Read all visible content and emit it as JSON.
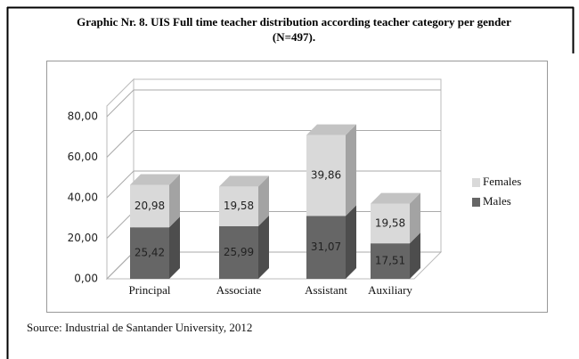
{
  "chart_data": {
    "type": "bar3d_stacked",
    "title": "Graphic  Nr. 8. UIS  Full time teacher distribution  according teacher category  per gender  (N=497).",
    "categories": [
      "Principal",
      "Associate",
      "Assistant",
      "Auxiliary"
    ],
    "series": [
      {
        "name": "Males",
        "color": "#666666",
        "values": [
          25.42,
          25.99,
          31.07,
          17.51
        ],
        "value_labels": [
          "25,42",
          "25,99",
          "31,07",
          "17,51"
        ]
      },
      {
        "name": "Females",
        "color": "#d9d9d9",
        "values": [
          20.98,
          19.58,
          39.86,
          19.58
        ],
        "value_labels": [
          "20,98",
          "19,58",
          "39,86",
          "19,58"
        ]
      }
    ],
    "ylim": [
      0,
      80
    ],
    "yticks": [
      {
        "value": 0,
        "label": "0,00"
      },
      {
        "value": 20,
        "label": "20,00"
      },
      {
        "value": 40,
        "label": "40,00"
      },
      {
        "value": 60,
        "label": "60,00"
      },
      {
        "value": 80,
        "label": "80,00"
      }
    ],
    "grid": true,
    "legend": "right",
    "source": "Source:  Industrial de Santander University, 2012"
  }
}
